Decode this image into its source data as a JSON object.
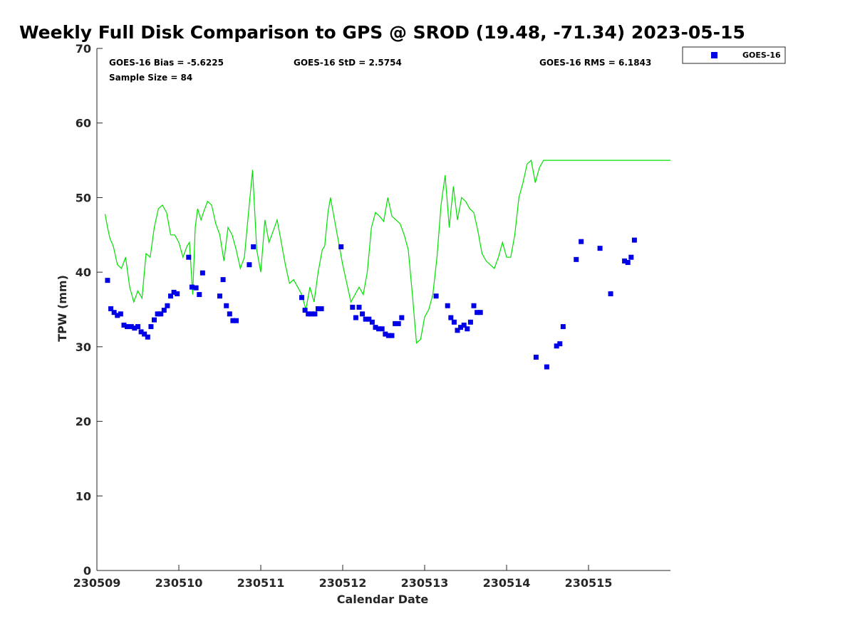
{
  "chart_data": {
    "type": "line+scatter",
    "title": "Weekly Full Disk Comparison to GPS @ SROD (19.48, -71.34) 2023-05-15",
    "xlabel": "Calendar Date",
    "ylabel": "TPW (mm)",
    "xlim": [
      0,
      7.0
    ],
    "ylim": [
      0,
      70
    ],
    "xticks": [
      {
        "v": 0,
        "label": "230509"
      },
      {
        "v": 1,
        "label": "230510"
      },
      {
        "v": 2,
        "label": "230511"
      },
      {
        "v": 3,
        "label": "230512"
      },
      {
        "v": 4,
        "label": "230513"
      },
      {
        "v": 5,
        "label": "230514"
      },
      {
        "v": 6,
        "label": "230515"
      }
    ],
    "yticks": [
      0,
      10,
      20,
      30,
      40,
      50,
      60,
      70
    ],
    "stats": {
      "bias": "GOES-16 Bias = -5.6225",
      "std": "GOES-16 StD = 2.5754",
      "rms": "GOES-16 RMS = 6.1843",
      "sample": "Sample Size = 84"
    },
    "legend": {
      "label": "GOES-16",
      "position": "top-right-outside"
    },
    "colors": {
      "gps": "#00e000",
      "goes": "#0000e6",
      "axis": "#262626"
    },
    "series": [
      {
        "name": "GPS",
        "style": "line",
        "x": [
          0.1,
          0.13,
          0.16,
          0.2,
          0.25,
          0.3,
          0.35,
          0.4,
          0.45,
          0.5,
          0.55,
          0.6,
          0.65,
          0.7,
          0.75,
          0.8,
          0.85,
          0.9,
          0.95,
          1.0,
          1.05,
          1.1,
          1.13,
          1.17,
          1.2,
          1.23,
          1.27,
          1.3,
          1.35,
          1.4,
          1.45,
          1.5,
          1.55,
          1.6,
          1.65,
          1.7,
          1.75,
          1.8,
          1.85,
          1.9,
          1.95,
          2.0,
          2.05,
          2.1,
          2.15,
          2.2,
          2.25,
          2.3,
          2.35,
          2.4,
          2.45,
          2.5,
          2.55,
          2.6,
          2.65,
          2.7,
          2.75,
          2.78,
          2.82,
          2.85,
          2.9,
          2.95,
          3.0,
          3.05,
          3.1,
          3.15,
          3.2,
          3.25,
          3.3,
          3.35,
          3.4,
          3.45,
          3.5,
          3.55,
          3.6,
          3.65,
          3.7,
          3.75,
          3.8,
          3.85,
          3.9,
          3.95,
          4.0,
          4.05,
          4.1,
          4.15,
          4.2,
          4.25,
          4.3,
          4.35,
          4.4,
          4.45,
          4.5,
          4.55,
          4.6,
          4.65,
          4.7,
          4.75,
          4.8,
          4.85,
          4.9,
          4.95,
          5.0,
          5.05,
          5.1,
          5.15,
          5.2,
          5.25,
          5.3,
          5.35,
          5.4,
          5.45,
          5.5,
          5.55,
          5.6,
          5.62,
          5.64,
          5.66,
          5.7,
          5.75,
          5.8,
          5.85,
          5.9,
          5.95,
          6.0,
          6.05,
          6.1,
          6.15,
          6.2,
          6.25,
          6.3,
          6.35,
          6.4,
          6.45,
          6.5,
          6.55,
          6.6,
          6.65,
          6.7,
          6.75,
          6.8,
          6.85,
          6.9,
          6.95,
          7.0
        ],
        "y": [
          47.8,
          46.0,
          44.5,
          43.5,
          41.0,
          40.5,
          42.0,
          38.0,
          36.0,
          37.5,
          36.5,
          42.5,
          42.0,
          46.0,
          48.5,
          49.0,
          48.0,
          45.0,
          45.0,
          44.0,
          42.0,
          43.5,
          44.0,
          37.0,
          46.0,
          48.5,
          47.0,
          48.0,
          49.5,
          49.0,
          46.5,
          45.0,
          41.5,
          46.0,
          45.0,
          43.0,
          40.5,
          42.0,
          48.0,
          53.7,
          43.0,
          40.0,
          47.0,
          44.0,
          45.5,
          47.0,
          44.0,
          41.0,
          38.5,
          39.0,
          38.0,
          37.0,
          35.0,
          38.0,
          36.0,
          40.0,
          43.0,
          43.5,
          48.0,
          50.0,
          47.0,
          44.0,
          41.0,
          38.5,
          36.0,
          37.0,
          38.0,
          37.0,
          40.0,
          46.0,
          48.0,
          47.5,
          46.8,
          50.0,
          47.5,
          47.0,
          46.5,
          45.0,
          43.0,
          37.0,
          30.5,
          31.0,
          34.0,
          35.0,
          37.0,
          42.0,
          49.0,
          53.0,
          46.0,
          51.5,
          47.0,
          50.0,
          49.5,
          48.5,
          48.0,
          45.5,
          42.5,
          41.5,
          41.0,
          40.5,
          42.0,
          44.0,
          42.0,
          42.0,
          45.0,
          50.0,
          52.0,
          54.5,
          55.0,
          52.0,
          54.0,
          55.0,
          55.0,
          55.0,
          55.0,
          55.0,
          55.0,
          55.0,
          55.0,
          55.0,
          55.0,
          55.0,
          55.0,
          55.0,
          55.0,
          55.0,
          55.0,
          55.0,
          55.0,
          55.0,
          55.0,
          55.0,
          55.0,
          55.0,
          55.0,
          55.0,
          55.0,
          55.0,
          55.0,
          55.0,
          55.0,
          55.0,
          55.0,
          55.0,
          55.0
        ]
      },
      {
        "name": "GOES-16",
        "style": "markers",
        "x": [
          0.13,
          0.17,
          0.21,
          0.25,
          0.29,
          0.33,
          0.37,
          0.42,
          0.46,
          0.5,
          0.54,
          0.58,
          0.62,
          0.66,
          0.7,
          0.74,
          0.78,
          0.82,
          0.86,
          0.9,
          0.94,
          0.98,
          1.12,
          1.16,
          1.21,
          1.25,
          1.29,
          1.5,
          1.54,
          1.58,
          1.62,
          1.66,
          1.7,
          1.86,
          1.91,
          2.5,
          2.54,
          2.58,
          2.62,
          2.66,
          2.7,
          2.74,
          2.98,
          3.12,
          3.16,
          3.2,
          3.24,
          3.28,
          3.32,
          3.36,
          3.4,
          3.44,
          3.48,
          3.52,
          3.56,
          3.6,
          3.64,
          3.68,
          3.72,
          4.14,
          4.28,
          4.32,
          4.36,
          4.4,
          4.44,
          4.48,
          4.52,
          4.56,
          4.6,
          4.64,
          4.68,
          5.36,
          5.49,
          5.61,
          5.65,
          5.69,
          5.85,
          5.91,
          6.14,
          6.27,
          6.44,
          6.48,
          6.52,
          6.56
        ],
        "y": [
          38.9,
          35.1,
          34.6,
          34.2,
          34.4,
          32.9,
          32.7,
          32.7,
          32.5,
          32.7,
          32.0,
          31.7,
          31.3,
          32.7,
          33.6,
          34.4,
          34.4,
          34.9,
          35.5,
          36.8,
          37.3,
          37.1,
          42.0,
          38.0,
          37.9,
          37.0,
          39.9,
          36.8,
          39.0,
          35.5,
          34.4,
          33.5,
          33.5,
          41.0,
          43.4,
          36.6,
          34.9,
          34.4,
          34.4,
          34.4,
          35.1,
          35.1,
          43.4,
          35.3,
          33.9,
          35.3,
          34.4,
          33.7,
          33.7,
          33.3,
          32.6,
          32.4,
          32.4,
          31.7,
          31.5,
          31.5,
          33.1,
          33.1,
          33.9,
          36.8,
          35.5,
          33.9,
          33.3,
          32.2,
          32.6,
          32.9,
          32.4,
          33.3,
          35.5,
          34.6,
          34.6,
          28.6,
          27.3,
          30.1,
          30.4,
          32.7,
          41.7,
          44.1,
          43.2,
          37.1,
          41.5,
          41.3,
          42.0,
          44.3
        ]
      }
    ]
  }
}
